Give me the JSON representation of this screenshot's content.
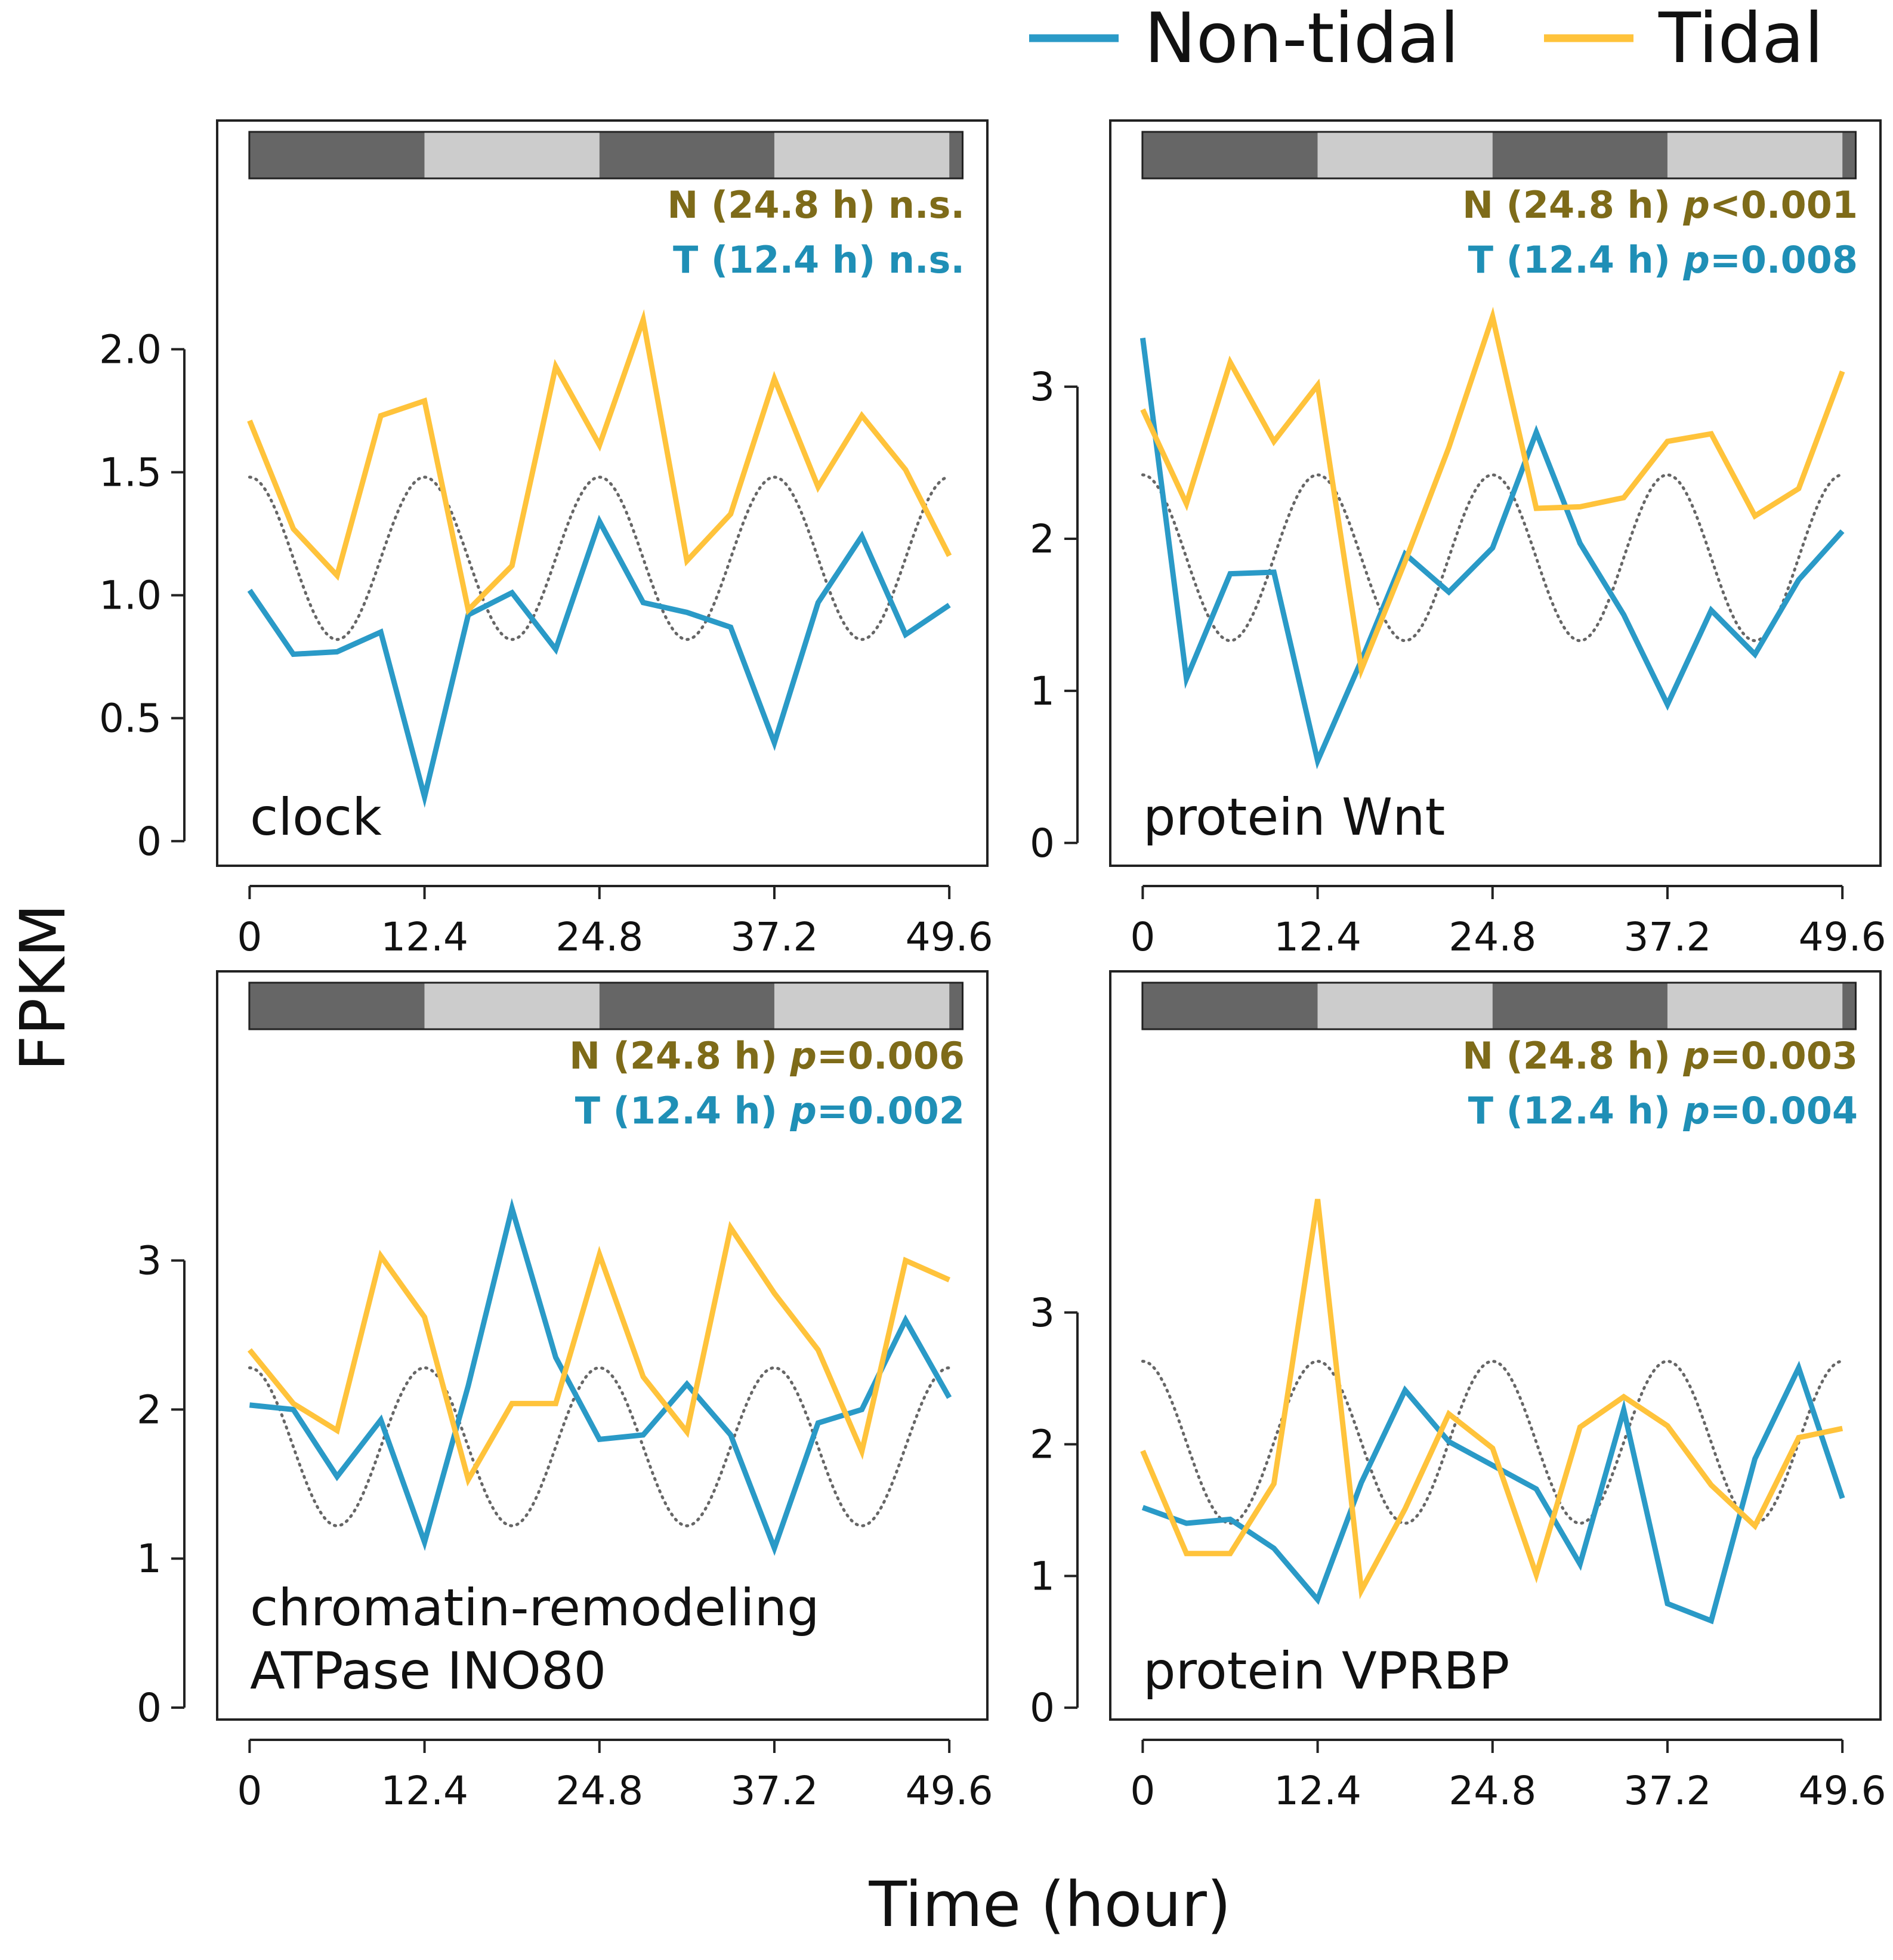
{
  "colors": {
    "non_tidal": "#2a9ac7",
    "tidal": "#ffc33b",
    "n_stat": "#7e6b19",
    "t_stat": "#1f8fb6",
    "dark_bar": "#666666",
    "light_bar": "#cccccc",
    "dotted": "#666666"
  },
  "legend": {
    "non_tidal": "Non-tidal",
    "tidal": "Tidal"
  },
  "x_axis_title": "Time (hour)",
  "y_axis_title": "FPKM",
  "chart_data": [
    {
      "type": "line",
      "panel_label_lines": [
        "clock"
      ],
      "stat_n": {
        "prefix": "N (24.8 h) ",
        "p_symbol": "",
        "p_value": "n.s."
      },
      "stat_t": {
        "prefix": "T (12.4 h) ",
        "p_symbol": "",
        "p_value": "n.s."
      },
      "x_ticks": [
        0,
        12.4,
        24.8,
        37.2,
        49.6
      ],
      "x_tick_labels": [
        "0",
        "12.4",
        "24.8",
        "37.2",
        "49.6"
      ],
      "y_ticks": [
        0,
        0.5,
        1.0,
        1.5,
        2.0
      ],
      "y_tick_labels": [
        "0",
        "0.5",
        "1.0",
        "1.5",
        "2.0"
      ],
      "xlim": [
        -2.3,
        52.3
      ],
      "ylim": [
        -0.1,
        2.93
      ],
      "x": [
        0,
        3.1,
        6.2,
        9.3,
        12.4,
        15.5,
        18.6,
        21.7,
        24.8,
        27.9,
        31.0,
        34.1,
        37.2,
        40.3,
        43.4,
        46.5,
        49.6
      ],
      "series": [
        {
          "name": "Non-tidal",
          "values": [
            1.02,
            0.76,
            0.77,
            0.85,
            0.18,
            0.92,
            1.01,
            0.78,
            1.3,
            0.97,
            0.93,
            0.87,
            0.4,
            0.97,
            1.24,
            0.84,
            0.96
          ]
        },
        {
          "name": "Tidal",
          "values": [
            1.71,
            1.27,
            1.08,
            1.73,
            1.79,
            0.94,
            1.12,
            1.93,
            1.61,
            2.12,
            1.14,
            1.33,
            1.88,
            1.44,
            1.73,
            1.51,
            1.16
          ]
        }
      ],
      "reference_cosine": {
        "period": 12.4,
        "peak_time": 0,
        "min": 0.82,
        "max": 1.48
      }
    },
    {
      "type": "line",
      "panel_label_lines": [
        "protein Wnt"
      ],
      "stat_n": {
        "prefix": "N (24.8 h) ",
        "p_symbol": "p",
        "p_value": "<0.001"
      },
      "stat_t": {
        "prefix": "T (12.4 h) ",
        "p_symbol": "p",
        "p_value": "=0.008"
      },
      "x_ticks": [
        0,
        12.4,
        24.8,
        37.2,
        49.6
      ],
      "x_tick_labels": [
        "0",
        "12.4",
        "24.8",
        "37.2",
        "49.6"
      ],
      "y_ticks": [
        0,
        1,
        2,
        3
      ],
      "y_tick_labels": [
        "0",
        "1",
        "2",
        "3"
      ],
      "xlim": [
        -2.3,
        52.3
      ],
      "ylim": [
        -0.15,
        4.75
      ],
      "x": [
        0,
        3.1,
        6.2,
        9.3,
        12.4,
        15.5,
        18.6,
        21.7,
        24.8,
        27.9,
        31.0,
        34.1,
        37.2,
        40.3,
        43.4,
        46.5,
        49.6
      ],
      "series": [
        {
          "name": "Non-tidal",
          "values": [
            3.32,
            1.08,
            1.77,
            1.78,
            0.54,
            1.2,
            1.9,
            1.65,
            1.94,
            2.7,
            1.97,
            1.5,
            0.91,
            1.53,
            1.24,
            1.73,
            2.05
          ]
        },
        {
          "name": "Tidal",
          "values": [
            2.85,
            2.23,
            3.16,
            2.64,
            3.01,
            1.14,
            1.85,
            2.6,
            3.46,
            2.2,
            2.21,
            2.27,
            2.64,
            2.69,
            2.15,
            2.33,
            3.1
          ]
        }
      ],
      "reference_cosine": {
        "period": 12.4,
        "peak_time": 0,
        "min": 1.33,
        "max": 2.42
      }
    },
    {
      "type": "line",
      "panel_label_lines": [
        "chromatin-remodeling",
        "ATPase INO80"
      ],
      "stat_n": {
        "prefix": "N (24.8 h) ",
        "p_symbol": "p",
        "p_value": "=0.006"
      },
      "stat_t": {
        "prefix": "T (12.4 h) ",
        "p_symbol": "p",
        "p_value": "=0.002"
      },
      "x_ticks": [
        0,
        12.4,
        24.8,
        37.2,
        49.6
      ],
      "x_tick_labels": [
        "0",
        "12.4",
        "24.8",
        "37.2",
        "49.6"
      ],
      "y_ticks": [
        0,
        1,
        2,
        3
      ],
      "y_tick_labels": [
        "0",
        "1",
        "2",
        "3"
      ],
      "xlim": [
        -2.3,
        52.3
      ],
      "ylim": [
        -0.08,
        4.94
      ],
      "x": [
        0,
        3.1,
        6.2,
        9.3,
        12.4,
        15.5,
        18.6,
        21.7,
        24.8,
        27.9,
        31.0,
        34.1,
        37.2,
        40.3,
        43.4,
        46.5,
        49.6
      ],
      "series": [
        {
          "name": "Non-tidal",
          "values": [
            2.03,
            2.0,
            1.55,
            1.93,
            1.11,
            2.16,
            3.35,
            2.35,
            1.8,
            1.83,
            2.17,
            1.83,
            1.07,
            1.91,
            2.0,
            2.6,
            2.08
          ]
        },
        {
          "name": "Tidal",
          "values": [
            2.4,
            2.04,
            1.86,
            3.03,
            2.62,
            1.53,
            2.04,
            2.04,
            3.04,
            2.22,
            1.85,
            3.22,
            2.78,
            2.4,
            1.72,
            3.0,
            2.87
          ]
        }
      ],
      "reference_cosine": {
        "period": 12.4,
        "peak_time": 0,
        "min": 1.22,
        "max": 2.28
      }
    },
    {
      "type": "line",
      "panel_label_lines": [
        "protein VPRBP"
      ],
      "stat_n": {
        "prefix": "N (24.8 h) ",
        "p_symbol": "p",
        "p_value": "=0.003"
      },
      "stat_t": {
        "prefix": "T (12.4 h) ",
        "p_symbol": "p",
        "p_value": "=0.004"
      },
      "x_ticks": [
        0,
        12.4,
        24.8,
        37.2,
        49.6
      ],
      "x_tick_labels": [
        "0",
        "12.4",
        "24.8",
        "37.2",
        "49.6"
      ],
      "y_ticks": [
        0,
        1,
        2,
        3
      ],
      "y_tick_labels": [
        "0",
        "1",
        "2",
        "3"
      ],
      "xlim": [
        -2.3,
        52.3
      ],
      "ylim": [
        -0.09,
        5.59
      ],
      "x": [
        0,
        3.1,
        6.2,
        9.3,
        12.4,
        15.5,
        18.6,
        21.7,
        24.8,
        27.9,
        31.0,
        34.1,
        37.2,
        40.3,
        43.4,
        46.5,
        49.6
      ],
      "series": [
        {
          "name": "Non-tidal",
          "values": [
            1.52,
            1.4,
            1.43,
            1.21,
            0.82,
            1.71,
            2.41,
            2.02,
            1.84,
            1.66,
            1.09,
            2.26,
            0.79,
            0.66,
            1.89,
            2.58,
            1.59
          ]
        },
        {
          "name": "Tidal",
          "values": [
            1.95,
            1.17,
            1.17,
            1.7,
            3.86,
            0.89,
            1.51,
            2.23,
            1.97,
            1.01,
            2.13,
            2.36,
            2.14,
            1.69,
            1.38,
            2.05,
            2.12
          ]
        }
      ],
      "reference_cosine": {
        "period": 12.4,
        "peak_time": 0,
        "min": 1.4,
        "max": 2.63
      }
    }
  ]
}
